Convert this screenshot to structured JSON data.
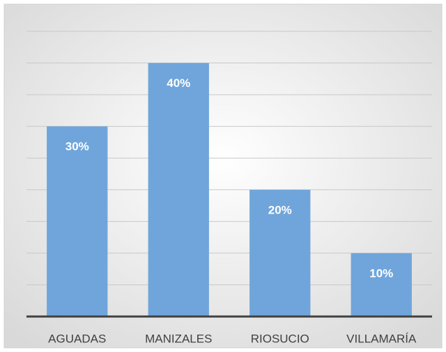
{
  "chart_data": {
    "type": "bar",
    "categories": [
      "AGUADAS",
      "MANIZALES",
      "RIOSUCIO",
      "VILLAMARÍA"
    ],
    "values": [
      30,
      40,
      20,
      10
    ],
    "value_labels": [
      "30%",
      "40%",
      "20%",
      "10%"
    ],
    "color": "#6fa5db",
    "ylim": [
      0,
      45
    ],
    "yticks": [
      0,
      5,
      10,
      15,
      20,
      25,
      30,
      35,
      40,
      45
    ],
    "grid": true
  }
}
